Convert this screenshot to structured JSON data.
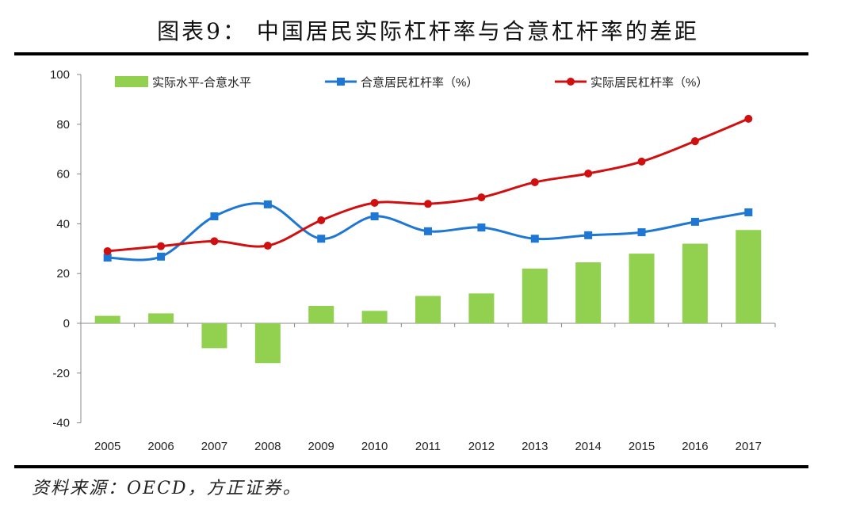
{
  "title": "图表9：  中国居民实际杠杆率与合意杠杆率的差距",
  "source": "资料来源：OECD，方正证券。",
  "chart_data": {
    "type": "bar+line",
    "title": "图表9：  中国居民实际杠杆率与合意杠杆率的差距",
    "categories": [
      "2005",
      "2006",
      "2007",
      "2008",
      "2009",
      "2010",
      "2011",
      "2012",
      "2013",
      "2014",
      "2015",
      "2016",
      "2017"
    ],
    "ylim": [
      -40,
      100
    ],
    "yticks": [
      -40,
      -20,
      0,
      20,
      40,
      60,
      80,
      100
    ],
    "legend_position": "top",
    "series": [
      {
        "name": "实际水平-合意水平",
        "type": "bar",
        "color": "#92d050",
        "values": [
          3,
          4,
          -10,
          -16,
          7,
          5,
          11,
          12,
          22,
          24.5,
          28,
          32,
          37.5
        ]
      },
      {
        "name": "合意居民杠杆率（%）",
        "type": "line",
        "marker": "square",
        "color": "#1f77d4",
        "values": [
          26.4,
          26.8,
          43,
          47.8,
          34,
          43,
          37,
          38.5,
          34,
          35.4,
          36.6,
          40.8,
          44.6
        ]
      },
      {
        "name": "实际居民杠杆率（%）",
        "type": "line",
        "marker": "circle",
        "color": "#d01010",
        "values": [
          29,
          31,
          33,
          31.2,
          41.4,
          48.4,
          48,
          50.6,
          56.7,
          60.2,
          65,
          73.2,
          82.2
        ]
      }
    ]
  }
}
